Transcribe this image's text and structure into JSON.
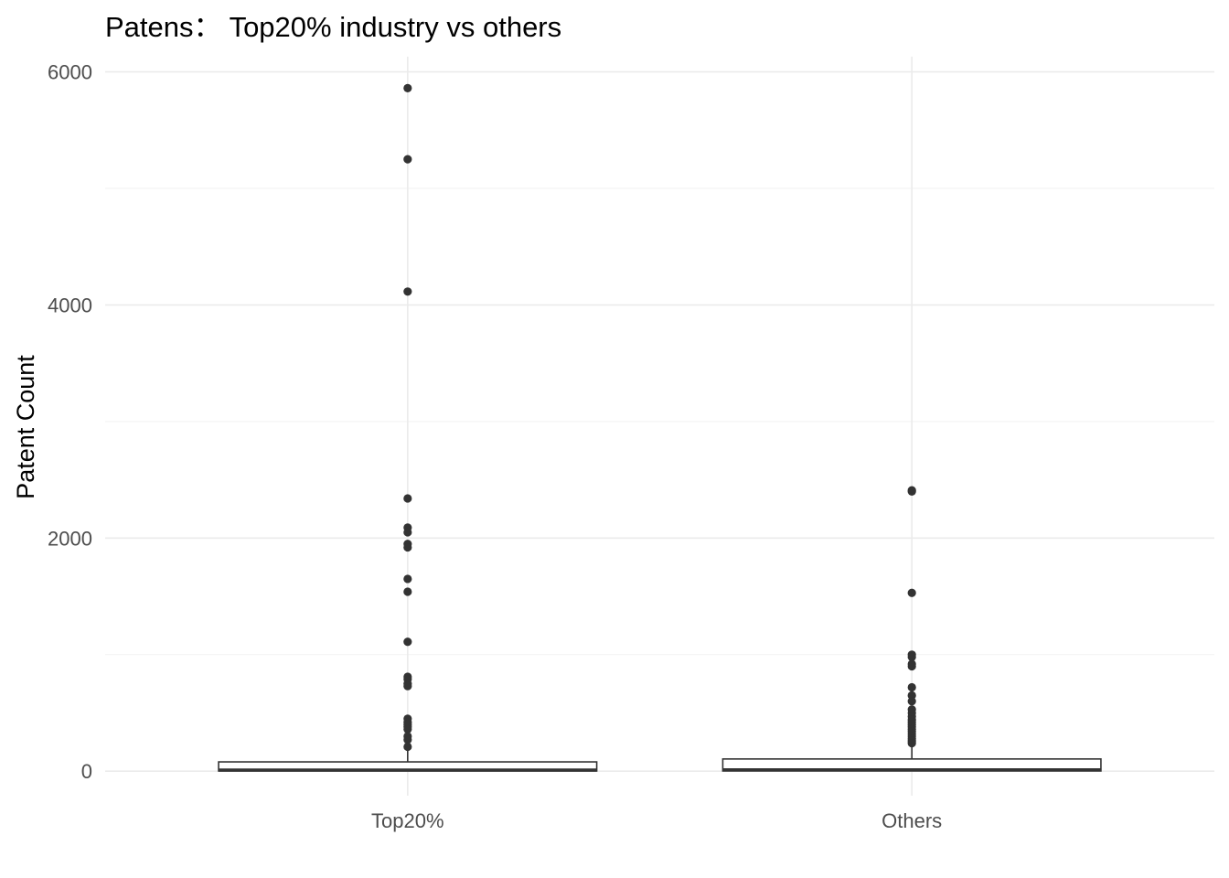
{
  "chart_data": {
    "type": "boxplot",
    "title": "Patens： Top20% industry vs others",
    "xlabel": "",
    "ylabel": "Patent Count",
    "ylim": [
      -210,
      6130
    ],
    "y_ticks": [
      0,
      2000,
      4000,
      6000
    ],
    "y_minor_ticks": [
      1000,
      3000,
      5000
    ],
    "grid": true,
    "legend": "none",
    "colors": {
      "box_stroke": "#333333",
      "box_fill": "#ffffff",
      "outlier": "#333333",
      "grid": "#ebebeb"
    },
    "categories": [
      "Top20%",
      "Others"
    ],
    "series": [
      {
        "category": "Top20%",
        "min": 0,
        "q1": 2,
        "median": 10,
        "q3": 80,
        "max": 195,
        "outliers": [
          5860,
          5250,
          4115,
          2340,
          2090,
          2050,
          1950,
          1920,
          1650,
          1540,
          1110,
          810,
          790,
          750,
          730,
          450,
          420,
          400,
          380,
          360,
          300,
          270,
          210
        ]
      },
      {
        "category": "Others",
        "min": 0,
        "q1": 2,
        "median": 12,
        "q3": 105,
        "max": 230,
        "outliers": [
          2410,
          2400,
          1530,
          1000,
          980,
          920,
          900,
          720,
          650,
          600,
          530,
          500,
          470,
          440,
          420,
          400,
          380,
          360,
          340,
          320,
          300,
          280,
          260,
          240
        ]
      }
    ]
  }
}
